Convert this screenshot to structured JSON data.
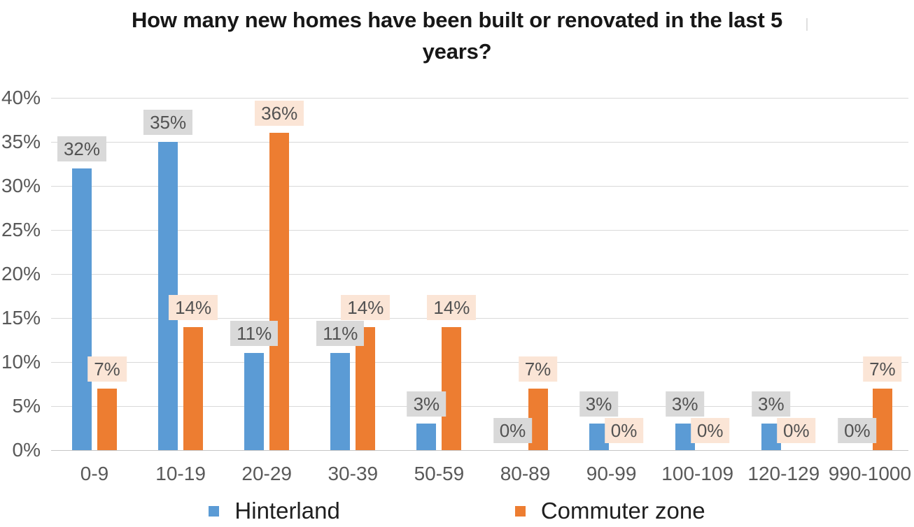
{
  "chart_data": {
    "type": "bar",
    "title": "How many new homes have been built or renovated in the last 5 years?",
    "categories": [
      "0-9",
      "10-19",
      "20-29",
      "30-39",
      "50-59",
      "80-89",
      "90-99",
      "100-109",
      "120-129",
      "990-1000"
    ],
    "series": [
      {
        "name": "Hinterland",
        "color": "#5B9BD5",
        "label_bg": "#D9D9D9",
        "values": [
          32,
          35,
          11,
          11,
          3,
          0,
          3,
          3,
          3,
          0
        ],
        "data_labels": [
          "32%",
          "35%",
          "11%",
          "11%",
          "3%",
          "0%",
          "3%",
          "3%",
          "3%",
          "0%"
        ]
      },
      {
        "name": "Commuter zone",
        "color": "#ED7D31",
        "label_bg": "#FBE5D6",
        "values": [
          7,
          14,
          36,
          14,
          14,
          7,
          0,
          0,
          0,
          7
        ],
        "data_labels": [
          "7%",
          "14%",
          "36%",
          "14%",
          "14%",
          "7%",
          "0%",
          "0%",
          "0%",
          "7%"
        ]
      }
    ],
    "yticks": [
      "0%",
      "5%",
      "10%",
      "15%",
      "20%",
      "25%",
      "30%",
      "35%",
      "40%"
    ],
    "ylim": [
      0,
      40
    ],
    "ytick_step": 5,
    "grid": true,
    "legend_position": "bottom",
    "colors": {
      "axis_text": "#595959",
      "gridline": "#D9D9D9",
      "baseline": "#C6C6C6",
      "label_text": "#525252",
      "title_text": "#171717",
      "legend_text": "#1f1f1f",
      "background": "#FFFFFF"
    }
  }
}
